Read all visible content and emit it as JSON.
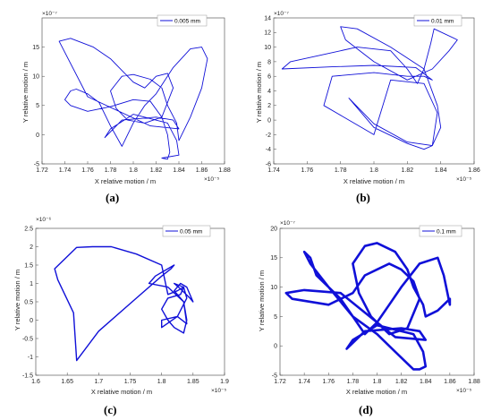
{
  "figure": {
    "line_color": "#1010d8",
    "panels": [
      {
        "label": "(a)",
        "legend": "0.005 mm",
        "xlabel": "X relative motion / m",
        "ylabel": "Y relative motion / m",
        "x_exponent": "×10⁻⁵",
        "y_exponent": "×10⁻⁷",
        "xticks": [
          "1.72",
          "1.74",
          "1.76",
          "1.78",
          "1.8",
          "1.82",
          "1.84",
          "1.86",
          "1.88"
        ],
        "yticks": [
          "-5",
          "0",
          "5",
          "10",
          "15"
        ]
      },
      {
        "label": "(b)",
        "legend": "0.01 mm",
        "xlabel": "X relative motion / m",
        "ylabel": "Y relative motion / m",
        "x_exponent": "×10⁻⁵",
        "y_exponent": "×10⁻⁷",
        "xticks": [
          "1.74",
          "1.76",
          "1.78",
          "1.8",
          "1.82",
          "1.84",
          "1.86"
        ],
        "yticks": [
          "-6",
          "-4",
          "-2",
          "0",
          "2",
          "4",
          "6",
          "8",
          "10",
          "12",
          "14"
        ]
      },
      {
        "label": "(c)",
        "legend": "0.05 mm",
        "xlabel": "X relative motion / m",
        "ylabel": "Y relative motion / m",
        "x_exponent": "×10⁻⁵",
        "y_exponent": "×10⁻⁶",
        "xticks": [
          "1.6",
          "1.65",
          "1.7",
          "1.75",
          "1.8",
          "1.85",
          "1.9"
        ],
        "yticks": [
          "-1.5",
          "-1",
          "-0.5",
          "0",
          "0.5",
          "1",
          "1.5",
          "2",
          "2.5"
        ]
      },
      {
        "label": "(d)",
        "legend": "0.1 mm",
        "xlabel": "X relative motion / m",
        "ylabel": "Y relative motion / m",
        "x_exponent": "×10⁻⁵",
        "y_exponent": "×10⁻⁷",
        "xticks": [
          "1.72",
          "1.74",
          "1.76",
          "1.78",
          "1.8",
          "1.82",
          "1.84",
          "1.86",
          "1.88"
        ],
        "yticks": [
          "-5",
          "0",
          "5",
          "10",
          "15",
          "20"
        ]
      }
    ]
  },
  "chart_data": [
    {
      "type": "line",
      "title": "",
      "legend_placement": "top-right",
      "series": [
        {
          "name": "0.005 mm",
          "x": [
            1.825,
            1.84,
            1.838,
            1.83,
            1.8,
            1.78,
            1.775,
            1.79,
            1.82,
            1.835,
            1.84,
            1.815,
            1.76,
            1.735,
            1.745,
            1.765,
            1.78,
            1.79,
            1.8,
            1.81,
            1.82,
            1.83,
            1.835,
            1.825,
            1.81,
            1.795,
            1.785,
            1.78,
            1.79,
            1.8,
            1.815,
            1.825,
            1.83,
            1.838,
            1.84,
            1.85,
            1.86,
            1.865,
            1.86,
            1.85,
            1.835,
            1.82,
            1.81,
            1.8,
            1.79,
            1.78,
            1.77,
            1.76,
            1.75,
            1.745,
            1.74,
            1.745,
            1.76,
            1.78,
            1.8,
            1.815,
            1.825,
            1.83,
            1.832,
            1.83,
            1.825
          ],
          "y": [
            -4,
            -3.5,
            -1,
            2,
            3.5,
            1,
            -0.5,
            2.5,
            3,
            2.5,
            1,
            1.5,
            6.5,
            16,
            16.5,
            15,
            13,
            11,
            9,
            8,
            10,
            10.5,
            8,
            3,
            2,
            2.5,
            4.5,
            7.5,
            10,
            10.3,
            9.5,
            8,
            5,
            2,
            -1,
            3,
            8,
            13,
            15,
            14.7,
            11.5,
            7,
            5,
            2,
            -2,
            1.5,
            5.5,
            7,
            7.8,
            7.5,
            6,
            5,
            4,
            4.8,
            6,
            5.7,
            3,
            0,
            -3,
            -4.2,
            -4
          ]
        }
      ],
      "xlim": [
        1.72,
        1.88
      ],
      "ylim": [
        -5,
        20
      ],
      "xlabel": "X relative motion / m",
      "ylabel": "Y relative motion / m"
    },
    {
      "type": "line",
      "title": "",
      "legend_placement": "top-right",
      "series": [
        {
          "name": "0.01 mm",
          "x": [
            1.835,
            1.838,
            1.83,
            1.81,
            1.8,
            1.77,
            1.775,
            1.8,
            1.82,
            1.83,
            1.835,
            1.825,
            1.8,
            1.775,
            1.745,
            1.75,
            1.77,
            1.79,
            1.81,
            1.82,
            1.826,
            1.83,
            1.834,
            1.836,
            1.85,
            1.845,
            1.835,
            1.82,
            1.8,
            1.783,
            1.78,
            1.79,
            1.81,
            1.83,
            1.838,
            1.84,
            1.835,
            1.82,
            1.8,
            1.785,
            1.8,
            1.82,
            1.83,
            1.835
          ],
          "y": [
            -3.5,
            1,
            5,
            5.5,
            -2,
            2,
            6,
            6.5,
            6,
            6,
            5.5,
            7.2,
            7.5,
            7.3,
            7,
            8,
            9,
            10,
            9.5,
            7,
            5,
            7,
            10.5,
            12.5,
            11,
            9.5,
            7,
            5.5,
            8,
            11,
            12.8,
            12.5,
            10,
            7,
            2,
            -1,
            -3.5,
            -3,
            -0.5,
            3,
            -1,
            -3.2,
            -4,
            -3.5
          ]
        }
      ],
      "xlim": [
        1.74,
        1.86
      ],
      "ylim": [
        -6,
        14
      ],
      "xlabel": "X relative motion / m",
      "ylabel": "Y relative motion / m"
    },
    {
      "type": "line",
      "title": "",
      "legend_placement": "top-right",
      "series": [
        {
          "name": "0.05 mm",
          "x": [
            1.665,
            1.7,
            1.76,
            1.8,
            1.815,
            1.82,
            1.79,
            1.78,
            1.81,
            1.835,
            1.84,
            1.825,
            1.8,
            1.8,
            1.825,
            1.84,
            1.835,
            1.82,
            1.83,
            1.845,
            1.85,
            1.84,
            1.83,
            1.82,
            1.835,
            1.84,
            1.835,
            1.82,
            1.81,
            1.8,
            1.81,
            1.83,
            1.835,
            1.825,
            1.81,
            1.8,
            1.76,
            1.72,
            1.69,
            1.665,
            1.63,
            1.635,
            1.66,
            1.665
          ],
          "y": [
            -1.1,
            -0.3,
            0.6,
            1.2,
            1.4,
            1.5,
            1.2,
            1.0,
            0.9,
            0.5,
            -0.1,
            0.1,
            0.0,
            -0.2,
            0.1,
            0.6,
            0.9,
            1.0,
            0.85,
            0.6,
            0.5,
            0.9,
            1.0,
            0.8,
            0.5,
            0.0,
            -0.35,
            -0.2,
            0.0,
            0.3,
            0.6,
            0.7,
            0.9,
            0.8,
            0.7,
            1.5,
            1.8,
            2.0,
            2.0,
            1.98,
            1.4,
            1.1,
            0.2,
            -1.1
          ]
        }
      ],
      "xlim": [
        1.6,
        1.9
      ],
      "ylim": [
        -1.5,
        2.5
      ],
      "xlabel": "X relative motion / m",
      "ylabel": "Y relative motion / m"
    },
    {
      "type": "line",
      "title": "",
      "legend_placement": "top-right",
      "series": [
        {
          "name": "0.1 mm",
          "x": [
            1.835,
            1.84,
            1.838,
            1.83,
            1.8,
            1.78,
            1.775,
            1.79,
            1.82,
            1.835,
            1.84,
            1.815,
            1.77,
            1.74,
            1.725,
            1.73,
            1.76,
            1.78,
            1.79,
            1.8,
            1.81,
            1.82,
            1.83,
            1.835,
            1.825,
            1.81,
            1.795,
            1.785,
            1.78,
            1.79,
            1.8,
            1.815,
            1.825,
            1.83,
            1.838,
            1.84,
            1.85,
            1.86,
            1.86,
            1.855,
            1.85,
            1.835,
            1.82,
            1.81,
            1.8,
            1.79,
            1.78,
            1.77,
            1.76,
            1.75,
            1.745,
            1.74,
            1.745,
            1.76,
            1.78,
            1.8,
            1.815,
            1.825,
            1.83,
            1.835
          ],
          "y": [
            -4,
            -3.5,
            -1,
            2,
            3.5,
            1,
            -0.5,
            2.5,
            3,
            2.5,
            1,
            1.5,
            9,
            9.5,
            9,
            8,
            7,
            9,
            12,
            13,
            14,
            13,
            11,
            8,
            3,
            2,
            5,
            9,
            14,
            17,
            17.5,
            16,
            13,
            10,
            7,
            5,
            6,
            8,
            7,
            12,
            15,
            14,
            10,
            7,
            4,
            2,
            5,
            8,
            10,
            12,
            15,
            16,
            14,
            10,
            5,
            2,
            -1,
            -3,
            -4,
            -4
          ]
        }
      ],
      "xlim": [
        1.72,
        1.88
      ],
      "ylim": [
        -5,
        20
      ],
      "xlabel": "X relative motion / m",
      "ylabel": "Y relative motion / m"
    }
  ]
}
